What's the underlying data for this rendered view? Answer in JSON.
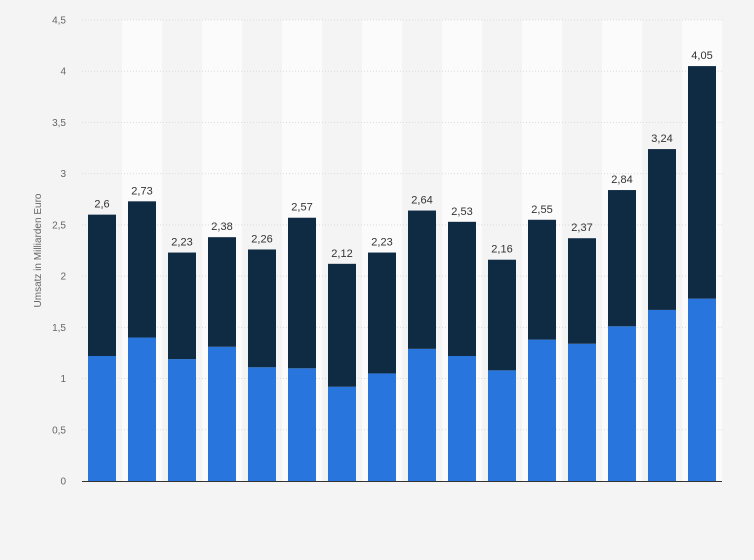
{
  "chart_data": {
    "type": "bar",
    "stacked": true,
    "ylabel": "Umsatz in Milliarden Euro",
    "xlabel": "",
    "ylim": [
      0,
      4.5
    ],
    "yticks": [
      {
        "value": 0,
        "label": "0"
      },
      {
        "value": 0.5,
        "label": "0,5"
      },
      {
        "value": 1,
        "label": "1"
      },
      {
        "value": 1.5,
        "label": "1,5"
      },
      {
        "value": 2,
        "label": "2"
      },
      {
        "value": 2.5,
        "label": "2,5"
      },
      {
        "value": 3,
        "label": "3"
      },
      {
        "value": 3.5,
        "label": "3,5"
      },
      {
        "value": 4,
        "label": "4"
      },
      {
        "value": 4.5,
        "label": "4,5"
      }
    ],
    "grid": true,
    "legend": "none",
    "colors": [
      "#2876dd",
      "#0f2a43"
    ],
    "series": [
      {
        "values": [
          1.22,
          1.4,
          1.19,
          1.31,
          1.11,
          1.1,
          0.92,
          1.05,
          1.29,
          1.22,
          1.08,
          1.38,
          1.34,
          1.51,
          1.67,
          1.78
        ]
      },
      {
        "values": [
          1.38,
          1.33,
          1.04,
          1.07,
          1.15,
          1.47,
          1.2,
          1.18,
          1.35,
          1.31,
          1.08,
          1.17,
          1.03,
          1.33,
          1.57,
          2.27
        ]
      }
    ],
    "totals": [
      2.6,
      2.73,
      2.23,
      2.38,
      2.26,
      2.57,
      2.12,
      2.23,
      2.64,
      2.53,
      2.16,
      2.55,
      2.37,
      2.84,
      3.24,
      4.05
    ],
    "total_labels": [
      "2,6",
      "2,73",
      "2,23",
      "2,38",
      "2,26",
      "2,57",
      "2,12",
      "2,23",
      "2,64",
      "2,53",
      "2,16",
      "2,55",
      "2,37",
      "2,84",
      "3,24",
      "4,05"
    ]
  }
}
